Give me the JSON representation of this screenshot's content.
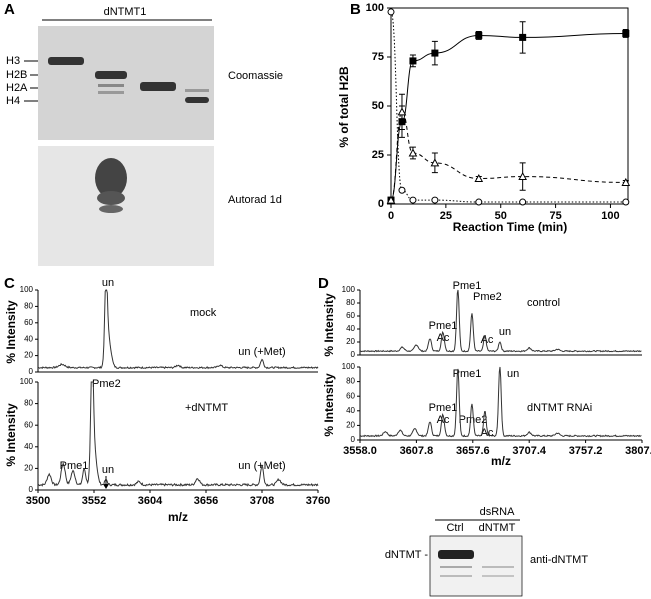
{
  "panel_a": {
    "letter": "A",
    "lane_header": "dNTMT1",
    "bands": [
      "H3",
      "H2B",
      "H2A",
      "H4"
    ],
    "top_label": "Coomassie",
    "bottom_label": "Autorad 1d"
  },
  "chart_data": {
    "type": "line",
    "letter": "B",
    "ylabel": "% of total H2B",
    "xlabel": "Reaction Time (min)",
    "x": [
      0,
      5,
      10,
      20,
      40,
      60,
      107
    ],
    "xlim": [
      0,
      108
    ],
    "ylim": [
      0,
      100
    ],
    "xticks": [
      0,
      25,
      50,
      75,
      100
    ],
    "yticks": [
      0,
      25,
      50,
      75,
      100
    ],
    "series": [
      {
        "marker": "square",
        "dash": "solid",
        "color": "#000000",
        "values": [
          2,
          42,
          73,
          77,
          86,
          85,
          87
        ],
        "errors": [
          0,
          8,
          3,
          6,
          2,
          8,
          2
        ]
      },
      {
        "marker": "triangle",
        "dash": "dashed",
        "color": "#000000",
        "values": [
          2,
          47,
          26,
          21,
          13,
          14,
          11
        ],
        "errors": [
          0,
          9,
          3,
          5,
          1,
          7,
          1
        ]
      },
      {
        "marker": "circle",
        "dash": "dotted",
        "color": "#000000",
        "values": [
          98,
          7,
          2,
          2,
          1,
          1,
          1
        ]
      }
    ]
  },
  "panel_c": {
    "letter": "C",
    "ylabel": "% Intensity",
    "xlabel": "m/z",
    "yticks": [
      "0",
      "20",
      "40",
      "60",
      "80",
      "100"
    ],
    "xticks": [
      "3500",
      "3552",
      "3604",
      "3656",
      "3708",
      "3760"
    ],
    "top": {
      "condition": "mock",
      "peak_un": "un",
      "peak_met": "un (+Met)"
    },
    "bottom": {
      "condition": "+dNTMT",
      "peak_pme2": "Pme2",
      "peak_pme1": "Pme1",
      "peak_un": "un",
      "peak_met": "un (+Met)"
    }
  },
  "panel_d": {
    "letter": "D",
    "ylabel": "% Intensity",
    "xlabel": "m/z",
    "yticks": [
      "0",
      "20",
      "40",
      "60",
      "80",
      "100"
    ],
    "xticks": [
      "3558.0",
      "3607.8",
      "3657.6",
      "3707.4",
      "3757.2",
      "3807.0"
    ],
    "top": {
      "condition": "control",
      "peak_pme1": "Pme1",
      "peak_pme2": "Pme2",
      "peak_pme1ac": "Pme1",
      "peak_ac_sub": "Ac",
      "peak_ac": "Ac",
      "peak_un": "un"
    },
    "bottom": {
      "condition": "dNTMT RNAi",
      "peak_pme1": "Pme1",
      "peak_un": "un",
      "peak_pme2": "Pme2",
      "peak_ac": "Ac",
      "peak_pme1ac": "Pme1",
      "peak_ac_sub": "Ac"
    }
  },
  "blot": {
    "header": "dsRNA",
    "lanes": [
      "Ctrl",
      "dNTMT"
    ],
    "band": "dNTMT -",
    "antibody": "anti-dNTMT"
  }
}
